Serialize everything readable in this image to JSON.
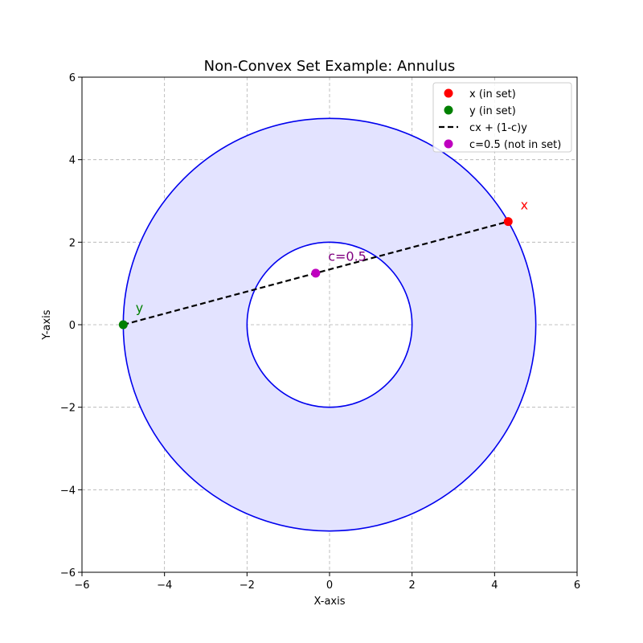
{
  "chart_data": {
    "type": "scatter",
    "title": "Non-Convex Set Example: Annulus",
    "xlabel": "X-axis",
    "ylabel": "Y-axis",
    "xlim": [
      -6,
      6
    ],
    "ylim": [
      -6,
      6
    ],
    "x_ticks": [
      -6,
      -4,
      -2,
      0,
      2,
      4,
      6
    ],
    "y_ticks": [
      -6,
      -4,
      -2,
      0,
      2,
      4,
      6
    ],
    "x_tick_labels": [
      "−6",
      "−4",
      "−2",
      "0",
      "2",
      "4",
      "6"
    ],
    "y_tick_labels": [
      "−6",
      "−4",
      "−2",
      "0",
      "2",
      "4",
      "6"
    ],
    "grid": true,
    "legend_position": "top-right",
    "annulus": {
      "center": [
        0,
        0
      ],
      "inner_radius": 2,
      "outer_radius": 5,
      "fill_color": "#e3e3ff",
      "edge_color": "#0000ee"
    },
    "series": [
      {
        "name": "x (in set)",
        "kind": "point",
        "x": 4.33,
        "y": 2.5,
        "color": "#ff0000"
      },
      {
        "name": "y (in set)",
        "kind": "point",
        "x": -5,
        "y": 0,
        "color": "#008000"
      },
      {
        "name": "cx + (1-c)y",
        "kind": "line",
        "x": [
          -5,
          4.33
        ],
        "y": [
          0,
          2.5
        ],
        "color": "#000000"
      },
      {
        "name": "c=0.5 (not in set)",
        "kind": "point",
        "x": -0.335,
        "y": 1.25,
        "color": "#bf00bf"
      }
    ],
    "annotations": [
      {
        "text": "x",
        "x": 4.63,
        "y": 2.8,
        "color": "#ff0000"
      },
      {
        "text": "y",
        "x": -4.7,
        "y": 0.3,
        "color": "#008000"
      },
      {
        "text": "c=0.5",
        "x": -0.035,
        "y": 1.55,
        "color": "#800080"
      }
    ]
  }
}
